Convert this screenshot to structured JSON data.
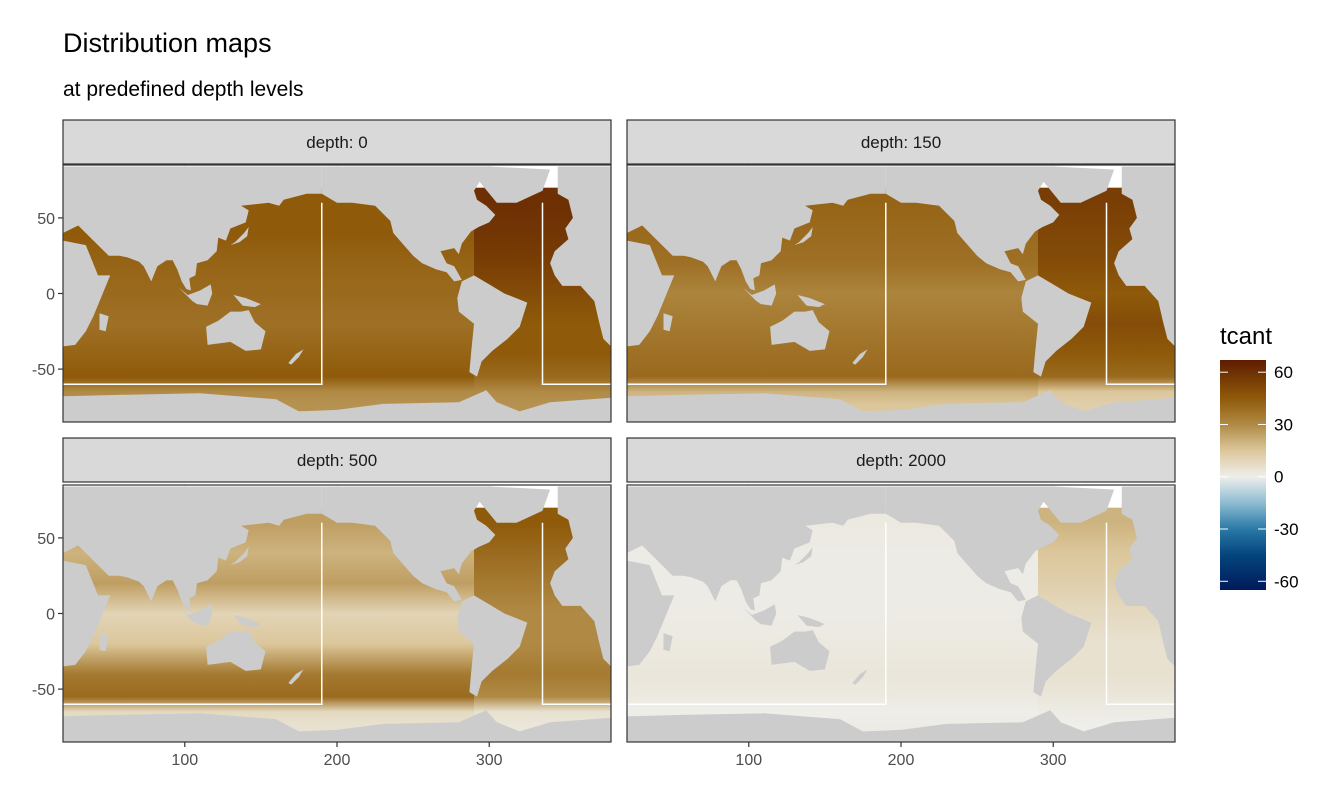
{
  "title": "Distribution maps",
  "subtitle": "at predefined depth levels",
  "chart_data": {
    "type": "heatmap",
    "title": "Distribution maps",
    "subtitle": "at predefined depth levels",
    "facet_variable": "depth",
    "facets": [
      {
        "label": "depth: 0",
        "depth": 0,
        "band_lat": [
          70,
          50,
          30,
          10,
          -10,
          -30,
          -50,
          -60,
          -70,
          -78
        ],
        "indo_pacific": [
          45,
          45,
          42,
          40,
          38,
          42,
          45,
          30,
          28
        ],
        "atlantic": [
          60,
          58,
          55,
          50,
          45,
          45,
          40,
          30,
          28
        ]
      },
      {
        "label": "depth: 150",
        "depth": 150,
        "band_lat": [
          70,
          50,
          30,
          10,
          -10,
          -30,
          -50,
          -60,
          -70,
          -78
        ],
        "indo_pacific": [
          42,
          40,
          38,
          32,
          35,
          38,
          40,
          20,
          15
        ],
        "atlantic": [
          55,
          52,
          50,
          45,
          50,
          45,
          40,
          15,
          12
        ]
      },
      {
        "label": "depth: 500",
        "depth": 500,
        "band_lat": [
          70,
          50,
          30,
          10,
          -10,
          -30,
          -50,
          -60,
          -70,
          -78
        ],
        "indo_pacific": [
          25,
          20,
          25,
          10,
          15,
          35,
          40,
          8,
          5
        ],
        "atlantic": [
          45,
          40,
          35,
          30,
          30,
          35,
          30,
          5,
          3
        ]
      },
      {
        "label": "depth: 2000",
        "depth": 2000,
        "band_lat": [
          70,
          50,
          30,
          10,
          -10,
          -30,
          -50,
          -60,
          -70,
          -78
        ],
        "indo_pacific": [
          2,
          1,
          1,
          1,
          2,
          3,
          2,
          0,
          1
        ],
        "atlantic": [
          20,
          15,
          12,
          8,
          5,
          5,
          3,
          1,
          0
        ]
      }
    ],
    "xlim": [
      20,
      380
    ],
    "ylim": [
      -85,
      85
    ],
    "x_ticks": [
      100,
      200,
      300
    ],
    "x_tick_labels": [
      "100",
      "200",
      "300"
    ],
    "y_ticks": [
      50,
      0,
      -50
    ],
    "y_tick_labels": [
      "50",
      "0",
      "-50"
    ],
    "xlabel": "",
    "ylabel": "",
    "grid": true,
    "basin_boundaries": {
      "lat_south": -60,
      "lat_north": 60,
      "indo_pacific_east_lon": 190,
      "atlantic_west_lon": 335
    },
    "legend": {
      "title": "tcant",
      "placement": "right",
      "type": "colorbar",
      "limits": [
        -65,
        67
      ],
      "ticks": [
        60,
        30,
        0,
        -30,
        -60
      ],
      "tick_labels": [
        "60",
        "30",
        "0",
        "-30",
        "-60"
      ],
      "color_stops": [
        {
          "value": -65,
          "color": "#001a5a"
        },
        {
          "value": -45,
          "color": "#04457e"
        },
        {
          "value": -30,
          "color": "#2a79a6"
        },
        {
          "value": -15,
          "color": "#8dbcd2"
        },
        {
          "value": 0,
          "color": "#eeeeea"
        },
        {
          "value": 15,
          "color": "#dcc79c"
        },
        {
          "value": 30,
          "color": "#b08a45"
        },
        {
          "value": 45,
          "color": "#8f5a0a"
        },
        {
          "value": 67,
          "color": "#5e1c00"
        }
      ]
    },
    "land_color": "#cccccc",
    "boundary_color": "#ffffff"
  }
}
